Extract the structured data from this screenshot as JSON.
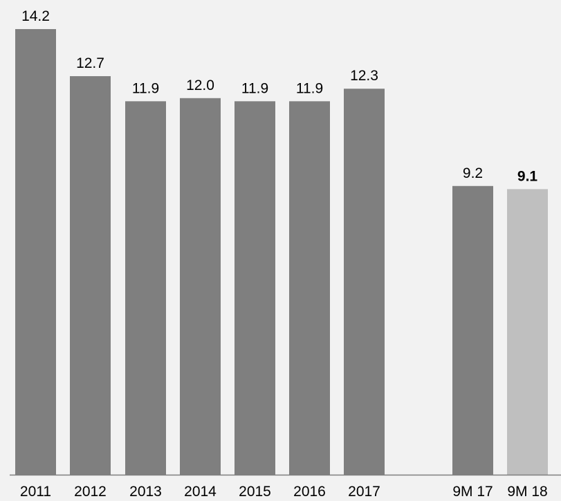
{
  "chart_data": {
    "type": "bar",
    "categories": [
      "2011",
      "2012",
      "2013",
      "2014",
      "2015",
      "2016",
      "2017",
      "9M 17",
      "9M 18"
    ],
    "values": [
      14.2,
      12.7,
      11.9,
      12.0,
      11.9,
      11.9,
      12.3,
      9.2,
      9.1
    ],
    "value_labels": [
      "14.2",
      "12.7",
      "11.9",
      "12.0",
      "11.9",
      "11.9",
      "12.3",
      "9.2",
      "9.1"
    ],
    "title": "",
    "xlabel": "",
    "ylabel": "",
    "ylim": [
      0,
      15
    ],
    "grid": false,
    "colors": {
      "bar": "#7f7f7f",
      "highlight_bar": "#bfbfbf",
      "axis": "#7f7f7f"
    },
    "highlight_index": 8
  }
}
